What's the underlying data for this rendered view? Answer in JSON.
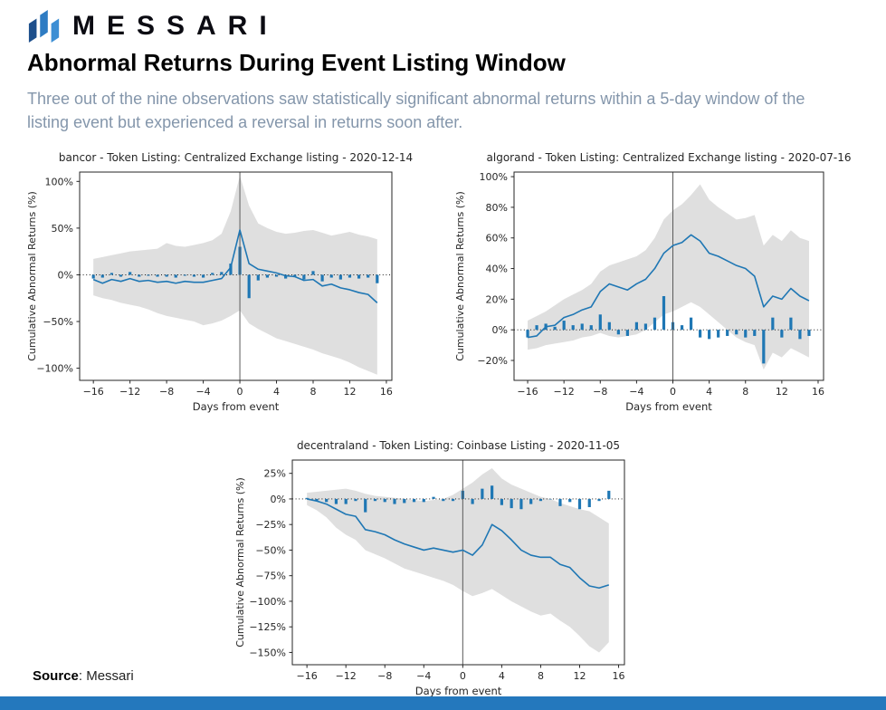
{
  "brand": {
    "logo_text": "MESSARI"
  },
  "header": {
    "title": "Abnormal Returns During Event Listing Window",
    "subtitle": "Three out of the nine observations saw statistically significant abnormal returns within a 5-day window of the listing event but experienced a reversal in returns soon after."
  },
  "footer": {
    "source_label": "Source",
    "source_value": ": Messari"
  },
  "colors": {
    "line": "#1f77b4",
    "band": "#dfdfdf",
    "accent_bar": "#2478bd",
    "subtitle_text": "#8496ab",
    "event_line": "#5a5a5a",
    "axis": "#262626"
  },
  "chart_data": [
    {
      "type": "line",
      "title": "bancor - Token Listing: Centralized Exchange listing - 2020-12-14",
      "xlabel": "Days from event",
      "ylabel": "Cumulative Abnormal Returns (%)",
      "legend_position": "none",
      "grid": false,
      "x": [
        -16,
        -15,
        -14,
        -13,
        -12,
        -11,
        -10,
        -9,
        -8,
        -7,
        -6,
        -5,
        -4,
        -3,
        -2,
        -1,
        0,
        1,
        2,
        3,
        4,
        5,
        6,
        7,
        8,
        9,
        10,
        11,
        12,
        13,
        14,
        15
      ],
      "car_line": [
        -5,
        -9,
        -5,
        -7,
        -4,
        -7,
        -6,
        -8,
        -7,
        -9,
        -7,
        -8,
        -8,
        -6,
        -4,
        8,
        48,
        12,
        6,
        4,
        2,
        -1,
        -2,
        -6,
        -5,
        -12,
        -10,
        -14,
        -16,
        -19,
        -21,
        -30
      ],
      "daily_bars": [
        -4,
        -3,
        2,
        -2,
        3,
        -2,
        -1,
        -2,
        -2,
        -3,
        -1,
        -2,
        -3,
        2,
        3,
        12,
        30,
        -25,
        -6,
        -3,
        -2,
        -4,
        -2,
        -5,
        4,
        -7,
        -3,
        -5,
        -3,
        -4,
        -3,
        -9
      ],
      "band_upper": [
        17,
        19,
        21,
        23,
        25,
        26,
        27,
        28,
        34,
        31,
        30,
        32,
        34,
        37,
        44,
        68,
        106,
        74,
        55,
        50,
        46,
        44,
        45,
        47,
        48,
        45,
        42,
        44,
        46,
        43,
        41,
        38
      ],
      "band_lower": [
        -22,
        -25,
        -27,
        -30,
        -32,
        -34,
        -37,
        -41,
        -44,
        -46,
        -48,
        -50,
        -54,
        -52,
        -49,
        -44,
        -38,
        -52,
        -58,
        -63,
        -68,
        -71,
        -74,
        -77,
        -80,
        -84,
        -87,
        -90,
        -94,
        -99,
        -103,
        -107
      ],
      "xticks": [
        -16,
        -12,
        -8,
        -4,
        0,
        4,
        8,
        12,
        16
      ],
      "yticks": [
        100,
        50,
        0,
        -50,
        -100
      ],
      "xlim": [
        -17.5,
        16.6
      ],
      "ylim": [
        -113,
        110
      ],
      "event_line_x": 0
    },
    {
      "type": "line",
      "title": "algorand - Token Listing: Centralized Exchange listing - 2020-07-16",
      "xlabel": "Days from event",
      "ylabel": "Cumulative Abnormal Returns (%)",
      "legend_position": "none",
      "grid": false,
      "x": [
        -16,
        -15,
        -14,
        -13,
        -12,
        -11,
        -10,
        -9,
        -8,
        -7,
        -6,
        -5,
        -4,
        -3,
        -2,
        -1,
        0,
        1,
        2,
        3,
        4,
        5,
        6,
        7,
        8,
        9,
        10,
        11,
        12,
        13,
        14,
        15
      ],
      "car_line": [
        -5,
        -4,
        2,
        3,
        8,
        10,
        13,
        15,
        25,
        30,
        28,
        26,
        30,
        33,
        40,
        50,
        55,
        57,
        62,
        58,
        50,
        48,
        45,
        42,
        40,
        35,
        15,
        22,
        20,
        27,
        22,
        19
      ],
      "daily_bars": [
        -5,
        3,
        4,
        2,
        6,
        3,
        4,
        3,
        10,
        5,
        -3,
        -4,
        5,
        4,
        8,
        22,
        5,
        3,
        8,
        -5,
        -6,
        -5,
        -4,
        -3,
        -5,
        -4,
        -22,
        8,
        -5,
        8,
        -6,
        -4
      ],
      "band_upper": [
        6,
        9,
        12,
        16,
        20,
        23,
        26,
        30,
        38,
        42,
        44,
        46,
        48,
        52,
        60,
        72,
        78,
        82,
        88,
        95,
        85,
        80,
        76,
        72,
        73,
        75,
        55,
        62,
        58,
        65,
        60,
        58
      ],
      "band_lower": [
        -13,
        -12,
        -10,
        -9,
        -8,
        -7,
        -5,
        -4,
        -2,
        -4,
        -5,
        -4,
        -3,
        0,
        5,
        10,
        12,
        15,
        18,
        15,
        10,
        5,
        0,
        -5,
        -8,
        -10,
        -26,
        -15,
        -18,
        -12,
        -15,
        -18
      ],
      "xticks": [
        -16,
        -12,
        -8,
        -4,
        0,
        4,
        8,
        12,
        16
      ],
      "yticks": [
        100,
        80,
        60,
        40,
        20,
        0,
        -20
      ],
      "xlim": [
        -17.5,
        16.6
      ],
      "ylim": [
        -33,
        103
      ],
      "event_line_x": 0
    },
    {
      "type": "line",
      "title": "decentraland - Token Listing: Coinbase Listing - 2020-11-05",
      "xlabel": "Days from event",
      "ylabel": "Cumulative Abnormal Returns (%)",
      "legend_position": "none",
      "grid": false,
      "x": [
        -16,
        -15,
        -14,
        -13,
        -12,
        -11,
        -10,
        -9,
        -8,
        -7,
        -6,
        -5,
        -4,
        -3,
        -2,
        -1,
        0,
        1,
        2,
        3,
        4,
        5,
        6,
        7,
        8,
        9,
        10,
        11,
        12,
        13,
        14,
        15
      ],
      "car_line": [
        0,
        -2,
        -5,
        -10,
        -15,
        -17,
        -30,
        -32,
        -35,
        -40,
        -44,
        -47,
        -50,
        -48,
        -50,
        -52,
        -50,
        -55,
        -45,
        -25,
        -31,
        -40,
        -50,
        -55,
        -57,
        -57,
        -64,
        -67,
        -77,
        -85,
        -87,
        -84
      ],
      "daily_bars": [
        1,
        -2,
        -3,
        -5,
        -5,
        -2,
        -13,
        -2,
        -3,
        -5,
        -4,
        -3,
        -3,
        2,
        -2,
        -2,
        8,
        -5,
        10,
        13,
        -6,
        -9,
        -10,
        -5,
        -2,
        0,
        -7,
        -3,
        -10,
        -8,
        -2,
        8
      ],
      "band_upper": [
        6,
        7,
        8,
        9,
        10,
        8,
        5,
        3,
        2,
        1,
        0,
        -1,
        -2,
        -1,
        0,
        4,
        10,
        16,
        24,
        30,
        20,
        14,
        10,
        6,
        2,
        0,
        -4,
        -7,
        -10,
        -12,
        -18,
        -24
      ],
      "band_lower": [
        -6,
        -11,
        -18,
        -28,
        -35,
        -40,
        -50,
        -54,
        -58,
        -63,
        -68,
        -71,
        -74,
        -77,
        -80,
        -84,
        -90,
        -95,
        -92,
        -88,
        -94,
        -100,
        -105,
        -110,
        -114,
        -112,
        -119,
        -125,
        -134,
        -144,
        -150,
        -140
      ],
      "xticks": [
        -16,
        -12,
        -8,
        -4,
        0,
        4,
        8,
        12,
        16
      ],
      "yticks": [
        25,
        0,
        -25,
        -50,
        -75,
        -100,
        -125,
        -150
      ],
      "xlim": [
        -17.5,
        16.6
      ],
      "ylim": [
        -162,
        38
      ],
      "event_line_x": 0
    }
  ]
}
